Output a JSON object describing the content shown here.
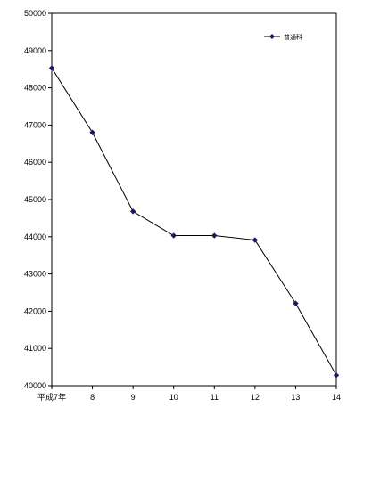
{
  "chart_data": {
    "type": "line",
    "categories": [
      "平成7年",
      "8",
      "9",
      "10",
      "11",
      "12",
      "13",
      "14"
    ],
    "series": [
      {
        "name": "普通科",
        "values": [
          48530,
          46800,
          44680,
          44030,
          44030,
          43910,
          42210,
          40280
        ]
      }
    ],
    "ylim": [
      40000,
      50000
    ],
    "yticks": [
      40000,
      41000,
      42000,
      43000,
      44000,
      45000,
      46000,
      47000,
      48000,
      49000,
      50000
    ],
    "grid": false,
    "legend": "top-right",
    "colors": {
      "line": "#000000",
      "marker": "#1a1a5e"
    }
  }
}
